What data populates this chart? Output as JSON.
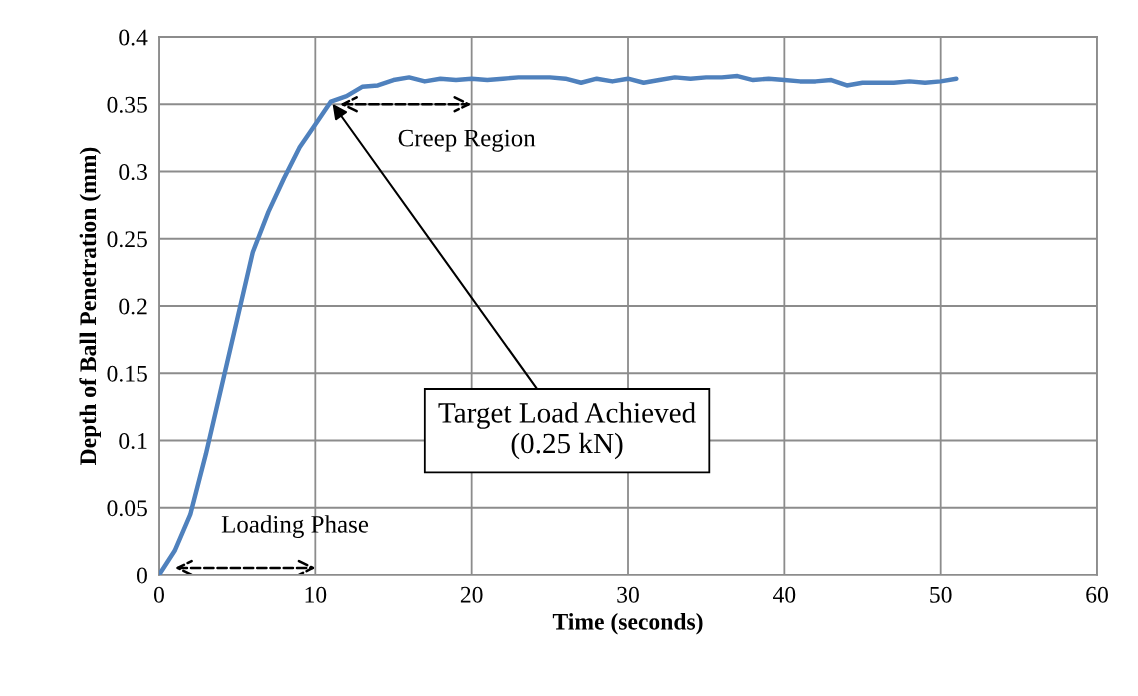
{
  "chart_data": {
    "type": "line",
    "xlabel": "Time (seconds)",
    "ylabel": "Depth of Ball Penetration (mm)",
    "x": [
      0,
      1,
      2,
      3,
      4,
      5,
      6,
      7,
      8,
      9,
      10,
      11,
      12,
      13,
      14,
      15,
      16,
      17,
      18,
      19,
      20,
      21,
      22,
      23,
      24,
      25,
      26,
      27,
      28,
      29,
      30,
      31,
      32,
      33,
      34,
      35,
      36,
      37,
      38,
      39,
      40,
      41,
      42,
      43,
      44,
      45,
      46,
      47,
      48,
      49,
      50,
      51
    ],
    "series": [
      {
        "color": "#4f81bd",
        "values": [
          0,
          0.018,
          0.045,
          0.09,
          0.14,
          0.19,
          0.24,
          0.27,
          0.295,
          0.318,
          0.335,
          0.352,
          0.356,
          0.363,
          0.364,
          0.368,
          0.37,
          0.367,
          0.369,
          0.368,
          0.369,
          0.368,
          0.369,
          0.37,
          0.37,
          0.37,
          0.369,
          0.366,
          0.369,
          0.367,
          0.369,
          0.366,
          0.368,
          0.37,
          0.369,
          0.37,
          0.37,
          0.371,
          0.368,
          0.369,
          0.368,
          0.367,
          0.367,
          0.368,
          0.364,
          0.366,
          0.366,
          0.366,
          0.367,
          0.366,
          0.367,
          0.369
        ]
      }
    ],
    "xlim": [
      0,
      60
    ],
    "xticks": [
      0,
      10,
      20,
      30,
      40,
      50,
      60
    ],
    "ylim": [
      0,
      0.4
    ],
    "yticks": [
      0,
      0.05,
      0.1,
      0.15,
      0.2,
      0.25,
      0.3,
      0.35,
      0.4
    ],
    "grid": true,
    "legend": false,
    "marker": "none",
    "line_style": "solid",
    "annotations": [
      {
        "text": "Target Load Achieved\n(0.25 kN)",
        "x": 11,
        "y": 0.352
      },
      "Creep Region",
      "Loading Phase"
    ]
  }
}
